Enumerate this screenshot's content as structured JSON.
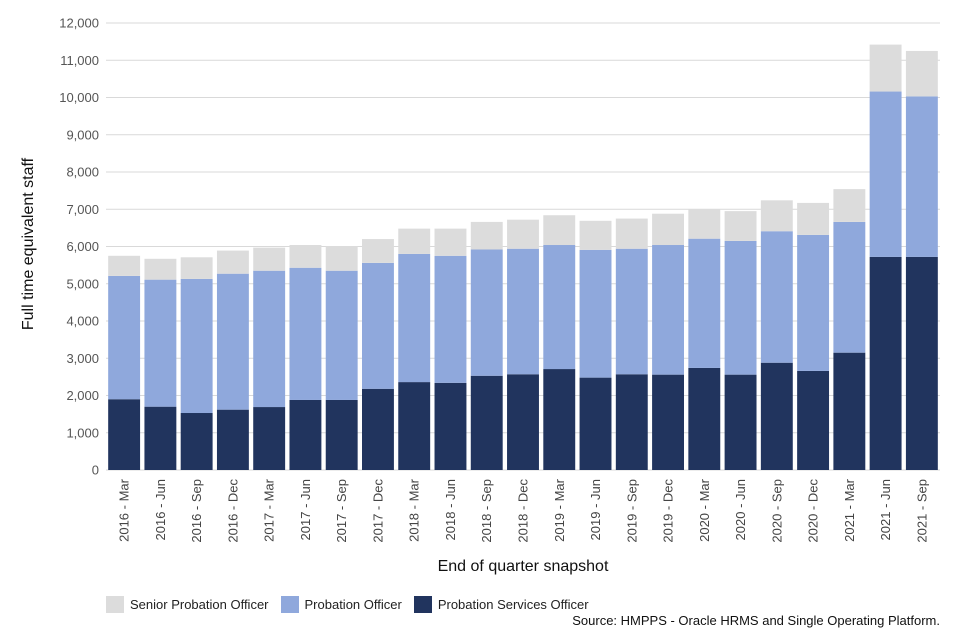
{
  "chart_data": {
    "type": "bar",
    "stacked": true,
    "xlabel": "End of quarter snapshot",
    "ylabel": "Full time equivalent staff",
    "ylim": [
      0,
      12000
    ],
    "yticks": [
      0,
      1000,
      2000,
      3000,
      4000,
      5000,
      6000,
      7000,
      8000,
      9000,
      10000,
      11000,
      12000
    ],
    "ytick_labels": [
      "0",
      "1,000",
      "2,000",
      "3,000",
      "4,000",
      "5,000",
      "6,000",
      "7,000",
      "8,000",
      "9,000",
      "10,000",
      "11,000",
      "12,000"
    ],
    "grid": true,
    "legend_position": "bottom-left",
    "categories": [
      "2016 - Mar",
      "2016 - Jun",
      "2016 - Sep",
      "2016 - Dec",
      "2017 - Mar",
      "2017 - Jun",
      "2017 - Sep",
      "2017 - Dec",
      "2018 - Mar",
      "2018 - Jun",
      "2018 - Sep",
      "2018 - Dec",
      "2019 - Mar",
      "2019 - Jun",
      "2019 - Sep",
      "2019 - Dec",
      "2020 - Mar",
      "2020 - Jun",
      "2020 - Sep",
      "2020 - Dec",
      "2021 - Mar",
      "2021 - Jun",
      "2021 - Sep"
    ],
    "series": [
      {
        "name": "Probation Services Officer",
        "color": "#21345e",
        "values": [
          1900,
          1700,
          1530,
          1620,
          1690,
          1880,
          1880,
          2180,
          2360,
          2340,
          2530,
          2570,
          2710,
          2480,
          2570,
          2560,
          2740,
          2560,
          2880,
          2660,
          3150,
          5720,
          5720
        ]
      },
      {
        "name": "Probation Officer",
        "color": "#8fa8dc",
        "values": [
          3310,
          3410,
          3600,
          3650,
          3660,
          3550,
          3470,
          3380,
          3440,
          3410,
          3390,
          3370,
          3330,
          3430,
          3370,
          3480,
          3470,
          3590,
          3530,
          3650,
          3510,
          4440,
          4310
        ]
      },
      {
        "name": "Senior Probation Officer",
        "color": "#dcdcdc",
        "values": [
          540,
          560,
          580,
          620,
          620,
          610,
          660,
          640,
          680,
          730,
          740,
          780,
          800,
          780,
          810,
          840,
          780,
          800,
          830,
          860,
          880,
          1260,
          1220
        ]
      }
    ],
    "legend_order": [
      "Senior Probation Officer",
      "Probation Officer",
      "Probation Services Officer"
    ]
  },
  "source": "Source: HMPPS - Oracle HRMS and Single Operating Platform."
}
